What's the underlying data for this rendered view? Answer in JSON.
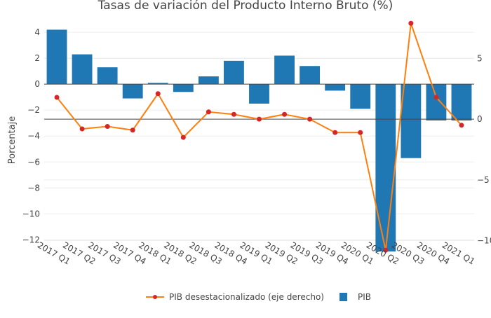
{
  "chart_data": {
    "type": "bar",
    "title": "Tasas de variación del Producto Interno Bruto (%)",
    "ylabel": "Porcentaje",
    "categories": [
      "2017 Q1",
      "2017 Q2",
      "2017 Q3",
      "2017 Q4",
      "2018 Q1",
      "2018 Q2",
      "2018 Q3",
      "2018 Q4",
      "2019 Q1",
      "2019 Q2",
      "2019 Q3",
      "2019 Q4",
      "2020 Q1",
      "2020 Q2",
      "2020 Q3",
      "2020 Q4",
      "2021 Q1"
    ],
    "ylim": [
      -12.9,
      4.6
    ],
    "yticks": [
      4,
      2,
      0,
      -2,
      -4,
      -6,
      -8,
      -10,
      -12
    ],
    "ytick_labels": [
      "4",
      "2",
      "0",
      "−2",
      "−4",
      "−6",
      "−8",
      "−10",
      "−12"
    ],
    "y2lim": [
      -10.9,
      7.8
    ],
    "y2ticks": [
      5,
      0,
      -5,
      -10
    ],
    "y2tick_labels": [
      "5",
      "0",
      "−5",
      "−10"
    ],
    "grid": true,
    "legend_position": "bottom",
    "series": [
      {
        "name": "PIB desestacionalizado (eje derecho)",
        "type": "line",
        "axis": "right",
        "color": "#ff7f0e",
        "marker_color": "#d62728",
        "values": [
          1.8,
          -0.8,
          -0.6,
          -0.9,
          2.1,
          -1.5,
          0.6,
          0.4,
          0.0,
          0.4,
          0.0,
          -1.1,
          -1.1,
          -10.8,
          7.9,
          1.8,
          -0.5
        ]
      },
      {
        "name": "PIB",
        "type": "bar",
        "axis": "left",
        "color": "#1f77b4",
        "values": [
          4.2,
          2.3,
          1.3,
          -1.1,
          0.1,
          -0.6,
          0.6,
          1.8,
          -1.5,
          2.2,
          1.4,
          -0.5,
          -1.9,
          -12.9,
          -5.7,
          -2.8,
          -2.8
        ]
      }
    ]
  }
}
